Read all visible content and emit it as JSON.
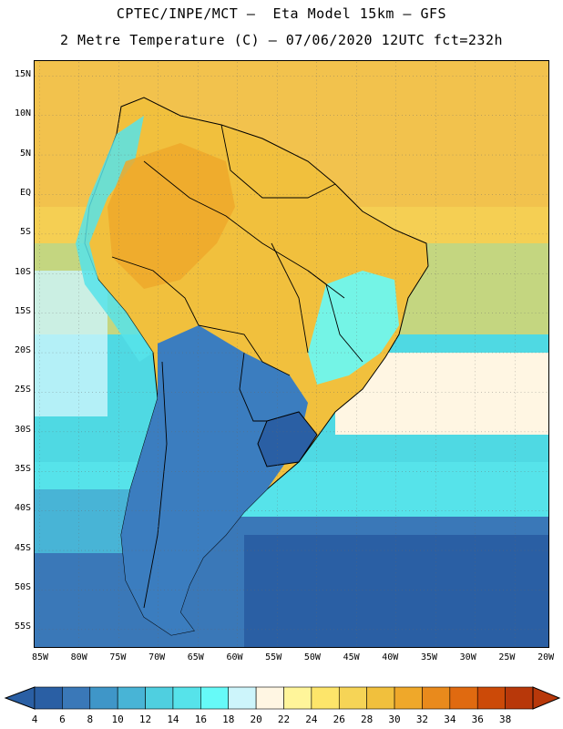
{
  "header": {
    "line1": "CPTEC/INPE/MCT –  Eta Model 15km – GFS",
    "line2": "2 Metre Temperature (C) – 07/06/2020 12UTC fct=232h"
  },
  "map": {
    "lat_labels": [
      "15N",
      "10N",
      "5N",
      "EQ",
      "5S",
      "10S",
      "15S",
      "20S",
      "25S",
      "30S",
      "35S",
      "40S",
      "45S",
      "50S",
      "55S"
    ],
    "lon_labels": [
      "85W",
      "80W",
      "75W",
      "70W",
      "65W",
      "60W",
      "55W",
      "50W",
      "45W",
      "40W",
      "35W",
      "30W",
      "25W",
      "20W"
    ],
    "ocean_color": "#4fd9e3",
    "land_warm_color": "#f4c24d",
    "land_cold_color": "#3b7dbf"
  },
  "colorbar": {
    "labels": [
      "4",
      "6",
      "8",
      "10",
      "12",
      "14",
      "16",
      "18",
      "20",
      "22",
      "24",
      "26",
      "28",
      "30",
      "32",
      "34",
      "36",
      "38"
    ],
    "colors": [
      "#2a5fa4",
      "#3a78b8",
      "#3f96c8",
      "#48b4d6",
      "#4fcfe0",
      "#56e3ea",
      "#66faf8",
      "#cdf5fb",
      "#fff6e3",
      "#fff59a",
      "#fde56a",
      "#f6d456",
      "#f1c03d",
      "#efa82a",
      "#e98a1c",
      "#e06a10",
      "#cc4a08",
      "#b8380a"
    ],
    "low_arrow_color": "#2a5fa4",
    "high_arrow_color": "#b8380a"
  }
}
